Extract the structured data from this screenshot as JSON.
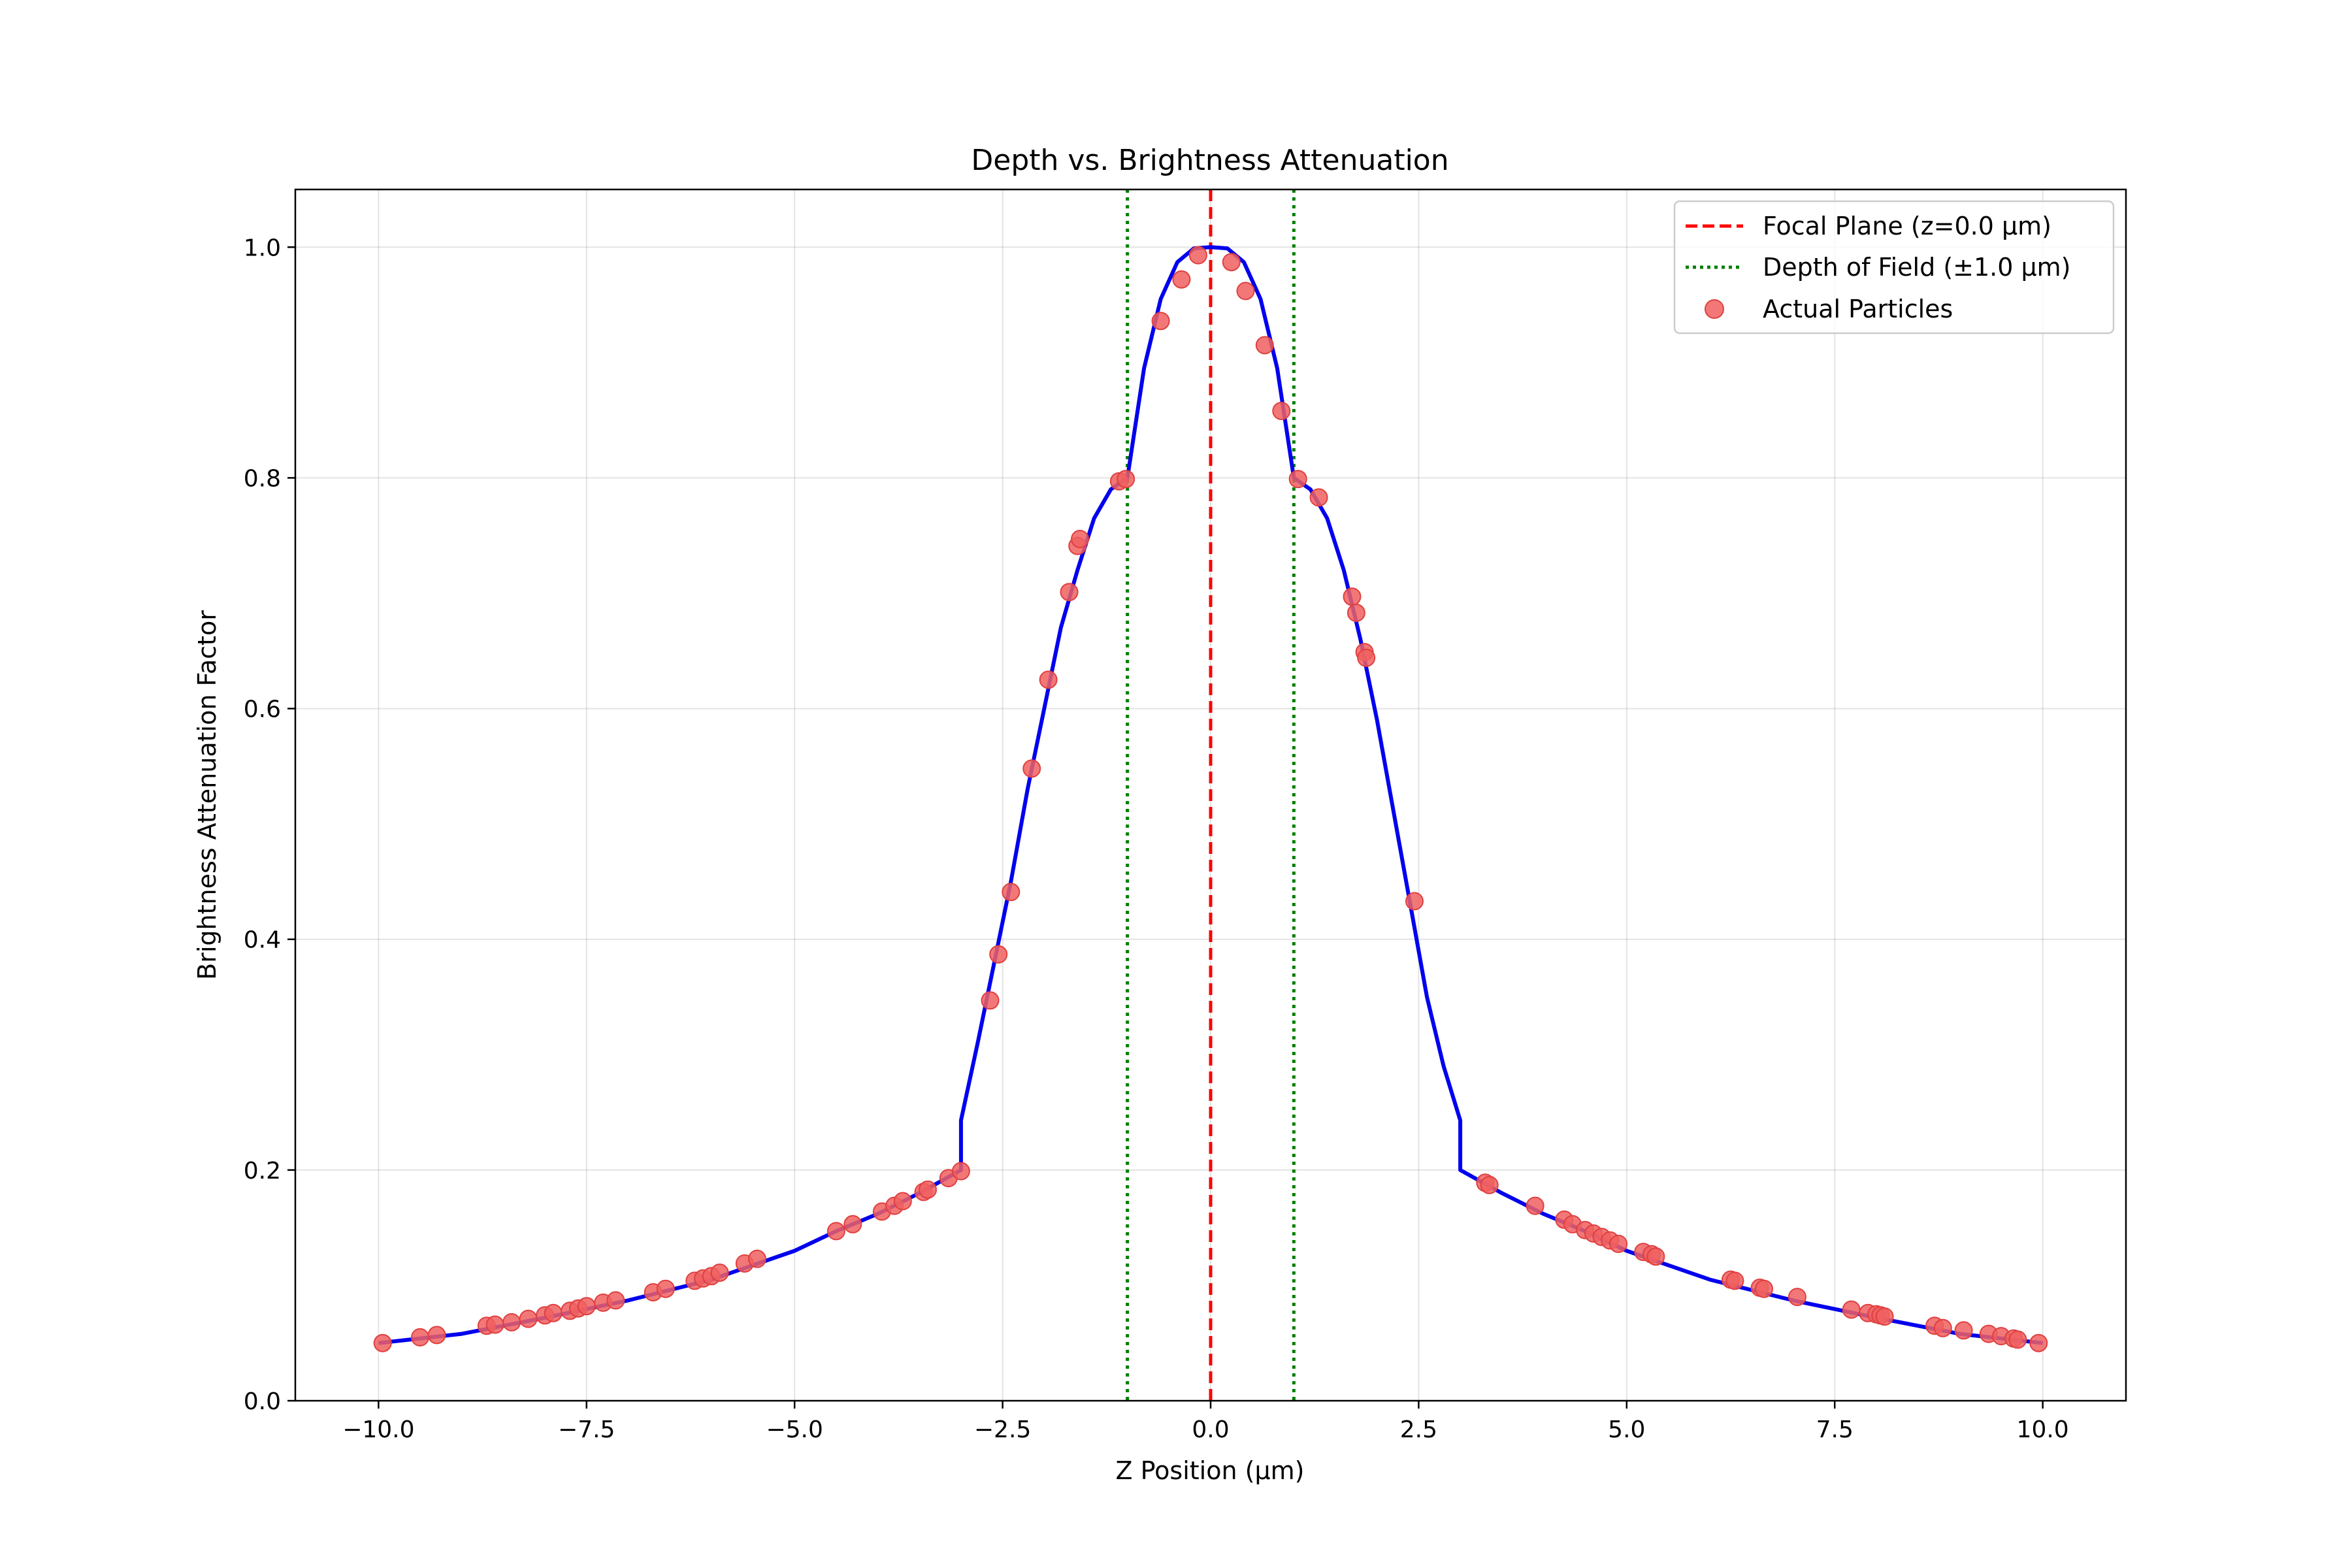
{
  "chart_data": {
    "type": "line",
    "title": "Depth vs. Brightness Attenuation",
    "xlabel": "Z Position (µm)",
    "ylabel": "Brightness Attenuation Factor",
    "xlim": [
      -11,
      11
    ],
    "ylim": [
      0,
      1.05
    ],
    "grid": true,
    "legend_position": "upper-right",
    "x_ticks": [
      -10,
      -7.5,
      -5,
      -2.5,
      0,
      2.5,
      5,
      7.5,
      10
    ],
    "x_tick_labels": [
      "−10.0",
      "−7.5",
      "−5.0",
      "−2.5",
      "0.0",
      "2.5",
      "5.0",
      "7.5",
      "10.0"
    ],
    "y_ticks": [
      0,
      0.2,
      0.4,
      0.6,
      0.8,
      1.0
    ],
    "y_tick_labels": [
      "0.0",
      "0.2",
      "0.4",
      "0.6",
      "0.8",
      "1.0"
    ],
    "colors": {
      "curve": "#0000ee",
      "focal": "#ff0000",
      "dof": "#007f00",
      "points": "#f06060"
    },
    "focal_plane": {
      "x": 0.0
    },
    "depth_of_field": {
      "x": [
        -1.0,
        1.0
      ]
    },
    "series": [
      {
        "name": "",
        "kind": "line",
        "x": [
          -10,
          -9,
          -8,
          -7,
          -6,
          -5,
          -4.5,
          -4,
          -3.5,
          -3.0,
          -3.0,
          -2.8,
          -2.6,
          -2.4,
          -2.2,
          -2.0,
          -1.8,
          -1.6,
          -1.4,
          -1.2,
          -1.0,
          -0.8,
          -0.6,
          -0.4,
          -0.2,
          0.0,
          0.2,
          0.4,
          0.6,
          0.8,
          1.0,
          1.2,
          1.4,
          1.6,
          1.8,
          2.0,
          2.2,
          2.4,
          2.6,
          2.8,
          3.0,
          3.0,
          3.5,
          4,
          4.5,
          5,
          6,
          7,
          8,
          9,
          10
        ],
        "y": [
          0.05,
          0.058,
          0.072,
          0.087,
          0.105,
          0.13,
          0.147,
          0.162,
          0.18,
          0.2,
          0.243,
          0.31,
          0.38,
          0.45,
          0.53,
          0.6,
          0.67,
          0.72,
          0.765,
          0.79,
          0.8,
          0.895,
          0.955,
          0.987,
          0.999,
          1.0,
          0.999,
          0.987,
          0.955,
          0.895,
          0.8,
          0.79,
          0.765,
          0.72,
          0.66,
          0.59,
          0.51,
          0.43,
          0.35,
          0.29,
          0.243,
          0.2,
          0.18,
          0.162,
          0.147,
          0.13,
          0.105,
          0.087,
          0.072,
          0.058,
          0.05
        ]
      },
      {
        "name": "Actual Particles",
        "kind": "scatter",
        "points": [
          [
            -9.95,
            0.05
          ],
          [
            -9.5,
            0.055
          ],
          [
            -9.3,
            0.057
          ],
          [
            -8.7,
            0.065
          ],
          [
            -8.6,
            0.066
          ],
          [
            -8.4,
            0.068
          ],
          [
            -8.2,
            0.071
          ],
          [
            -8.0,
            0.074
          ],
          [
            -7.9,
            0.076
          ],
          [
            -7.7,
            0.078
          ],
          [
            -7.6,
            0.08
          ],
          [
            -7.5,
            0.082
          ],
          [
            -7.3,
            0.085
          ],
          [
            -7.15,
            0.087
          ],
          [
            -6.7,
            0.094
          ],
          [
            -6.55,
            0.097
          ],
          [
            -6.2,
            0.104
          ],
          [
            -6.1,
            0.106
          ],
          [
            -6.0,
            0.108
          ],
          [
            -5.9,
            0.111
          ],
          [
            -5.6,
            0.119
          ],
          [
            -5.45,
            0.123
          ],
          [
            -4.5,
            0.147
          ],
          [
            -4.3,
            0.153
          ],
          [
            -3.95,
            0.164
          ],
          [
            -3.8,
            0.169
          ],
          [
            -3.7,
            0.173
          ],
          [
            -3.45,
            0.181
          ],
          [
            -3.4,
            0.183
          ],
          [
            -3.15,
            0.193
          ],
          [
            -3.0,
            0.199
          ],
          [
            -2.65,
            0.347
          ],
          [
            -2.55,
            0.387
          ],
          [
            -2.4,
            0.441
          ],
          [
            -2.15,
            0.548
          ],
          [
            -1.95,
            0.625
          ],
          [
            -1.7,
            0.701
          ],
          [
            -1.6,
            0.741
          ],
          [
            -1.57,
            0.747
          ],
          [
            -1.1,
            0.797
          ],
          [
            -1.02,
            0.799
          ],
          [
            -0.6,
            0.936
          ],
          [
            -0.35,
            0.972
          ],
          [
            -0.15,
            0.993
          ],
          [
            0.25,
            0.987
          ],
          [
            0.42,
            0.962
          ],
          [
            0.65,
            0.915
          ],
          [
            0.85,
            0.858
          ],
          [
            1.05,
            0.799
          ],
          [
            1.3,
            0.783
          ],
          [
            1.7,
            0.697
          ],
          [
            1.75,
            0.683
          ],
          [
            1.85,
            0.649
          ],
          [
            1.87,
            0.644
          ],
          [
            2.45,
            0.433
          ],
          [
            3.3,
            0.189
          ],
          [
            3.35,
            0.187
          ],
          [
            3.9,
            0.169
          ],
          [
            4.25,
            0.157
          ],
          [
            4.35,
            0.153
          ],
          [
            4.5,
            0.148
          ],
          [
            4.6,
            0.145
          ],
          [
            4.7,
            0.142
          ],
          [
            4.8,
            0.139
          ],
          [
            4.9,
            0.136
          ],
          [
            5.2,
            0.129
          ],
          [
            5.3,
            0.127
          ],
          [
            5.35,
            0.125
          ],
          [
            6.25,
            0.105
          ],
          [
            6.3,
            0.104
          ],
          [
            6.6,
            0.098
          ],
          [
            6.65,
            0.097
          ],
          [
            7.05,
            0.09
          ],
          [
            7.7,
            0.079
          ],
          [
            7.9,
            0.076
          ],
          [
            8.0,
            0.075
          ],
          [
            8.05,
            0.074
          ],
          [
            8.1,
            0.073
          ],
          [
            8.7,
            0.065
          ],
          [
            8.8,
            0.063
          ],
          [
            9.05,
            0.061
          ],
          [
            9.35,
            0.058
          ],
          [
            9.5,
            0.056
          ],
          [
            9.65,
            0.054
          ],
          [
            9.7,
            0.053
          ],
          [
            9.95,
            0.05
          ]
        ]
      }
    ],
    "legend": [
      {
        "label": "Focal Plane (z=0.0 µm)",
        "style": "dashed",
        "color_key": "focal"
      },
      {
        "label": "Depth of Field (±1.0 µm)",
        "style": "dotted",
        "color_key": "dof"
      },
      {
        "label": "Actual Particles",
        "style": "marker",
        "color_key": "points"
      }
    ]
  }
}
